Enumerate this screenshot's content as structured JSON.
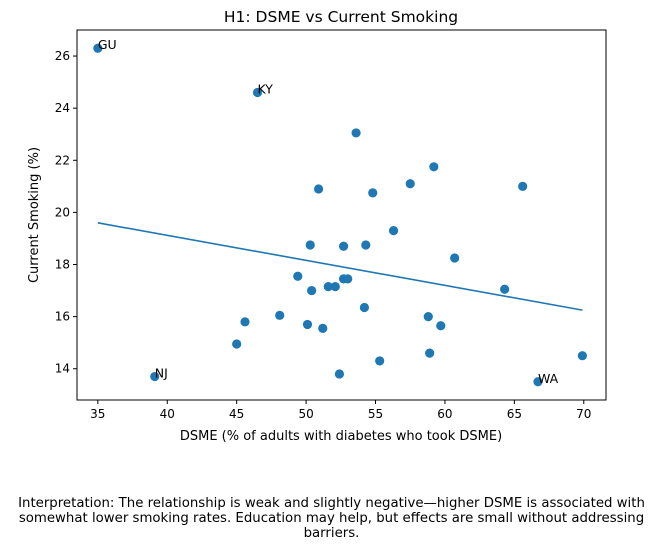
{
  "chart_data": {
    "type": "scatter",
    "title": "H1: DSME vs Current Smoking",
    "xlabel": "DSME (% of adults with diabetes who took DSME)",
    "ylabel": "Current Smoking (%)",
    "xlim": [
      33.5,
      71.6
    ],
    "ylim": [
      12.8,
      27.0
    ],
    "xticks": [
      35,
      40,
      45,
      50,
      55,
      60,
      65,
      70
    ],
    "yticks": [
      14,
      16,
      18,
      20,
      22,
      24,
      26
    ],
    "grid": false,
    "point_color": "#1f77b4",
    "line_color": "#1f77b4",
    "points": [
      {
        "x": 35.0,
        "y": 26.3,
        "label": "GU"
      },
      {
        "x": 46.5,
        "y": 24.6,
        "label": "KY"
      },
      {
        "x": 53.6,
        "y": 23.05
      },
      {
        "x": 59.2,
        "y": 21.75
      },
      {
        "x": 57.5,
        "y": 21.1
      },
      {
        "x": 65.6,
        "y": 21.0
      },
      {
        "x": 50.9,
        "y": 20.9
      },
      {
        "x": 54.8,
        "y": 20.75
      },
      {
        "x": 56.3,
        "y": 19.3
      },
      {
        "x": 50.3,
        "y": 18.75
      },
      {
        "x": 52.7,
        "y": 18.7
      },
      {
        "x": 54.3,
        "y": 18.75
      },
      {
        "x": 60.7,
        "y": 18.25
      },
      {
        "x": 49.4,
        "y": 17.55
      },
      {
        "x": 52.7,
        "y": 17.45
      },
      {
        "x": 53.0,
        "y": 17.45
      },
      {
        "x": 51.6,
        "y": 17.15
      },
      {
        "x": 52.1,
        "y": 17.15
      },
      {
        "x": 50.4,
        "y": 17.0
      },
      {
        "x": 64.3,
        "y": 17.05
      },
      {
        "x": 54.2,
        "y": 16.35
      },
      {
        "x": 48.1,
        "y": 16.05
      },
      {
        "x": 58.8,
        "y": 16.0
      },
      {
        "x": 45.6,
        "y": 15.8
      },
      {
        "x": 50.1,
        "y": 15.7
      },
      {
        "x": 59.7,
        "y": 15.65
      },
      {
        "x": 51.2,
        "y": 15.55
      },
      {
        "x": 45.0,
        "y": 14.95
      },
      {
        "x": 58.9,
        "y": 14.6
      },
      {
        "x": 69.9,
        "y": 14.5
      },
      {
        "x": 55.3,
        "y": 14.3
      },
      {
        "x": 39.1,
        "y": 13.7,
        "label": "NJ"
      },
      {
        "x": 52.4,
        "y": 13.8
      },
      {
        "x": 66.7,
        "y": 13.5,
        "label": "WA"
      }
    ],
    "fit_line": {
      "x": [
        35.0,
        69.9
      ],
      "y": [
        19.6,
        16.25
      ]
    }
  },
  "interpretation": "Interpretation: The relationship is weak and slightly negative—higher DSME is associated with somewhat lower smoking rates. Education may help, but effects are small without addressing barriers."
}
